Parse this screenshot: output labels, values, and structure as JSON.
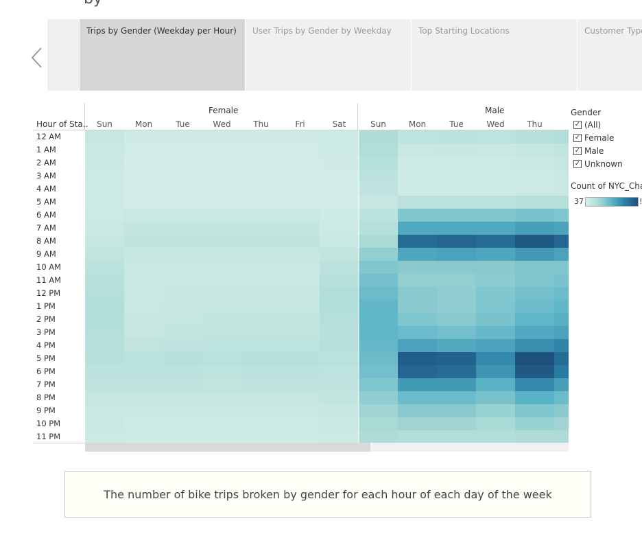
{
  "top_clipped_text": "by",
  "story": {
    "points": [
      {
        "label": "Trips by Gender (Weekday per Hour)",
        "active": true
      },
      {
        "label": "User Trips by Gender by Weekday",
        "active": false
      },
      {
        "label": "Top Starting Locations",
        "active": false
      },
      {
        "label": "Customer Type",
        "active": false
      }
    ],
    "prev_icon": "chevron-left-icon"
  },
  "viz": {
    "row_header": "Hour of Sta..",
    "hours": [
      "12 AM",
      "1 AM",
      "2 AM",
      "3 AM",
      "4 AM",
      "5 AM",
      "6 AM",
      "7 AM",
      "8 AM",
      "9 AM",
      "10 AM",
      "11 AM",
      "12 PM",
      "1 PM",
      "2 PM",
      "3 PM",
      "4 PM",
      "5 PM",
      "6 PM",
      "7 PM",
      "8 PM",
      "9 PM",
      "10 PM",
      "11 PM"
    ],
    "panes": [
      {
        "gender": "Female",
        "days": [
          "Sun",
          "Mon",
          "Tue",
          "Wed",
          "Thu",
          "Fri",
          "Sat"
        ]
      },
      {
        "gender": "Male",
        "days": [
          "Sun",
          "Mon",
          "Tue",
          "Wed",
          "Thu"
        ]
      }
    ]
  },
  "legends": {
    "filter_title": "Gender",
    "filter_items": [
      {
        "label": "(All)",
        "checked": true
      },
      {
        "label": "Female",
        "checked": true
      },
      {
        "label": "Male",
        "checked": true
      },
      {
        "label": "Unknown",
        "checked": true
      }
    ],
    "color_title": "Count of NYC_Chall",
    "color_min": "37",
    "color_max_visible": "!",
    "ramp_colors": [
      "#d7eee9",
      "#a9dad5",
      "#5bb3c7",
      "#2a7fa5",
      "#1f4f7d"
    ]
  },
  "chart_data": {
    "type": "heatmap",
    "title": "",
    "xlabel": "",
    "ylabel": "Hour of Sta..",
    "columns": [
      "Female Sun",
      "Female Mon",
      "Female Tue",
      "Female Wed",
      "Female Thu",
      "Female Fri",
      "Female Sat",
      "Male Sun",
      "Male Mon",
      "Male Tue",
      "Male Wed",
      "Male Thu",
      "Male Fri"
    ],
    "rows": [
      "12 AM",
      "1 AM",
      "2 AM",
      "3 AM",
      "4 AM",
      "5 AM",
      "6 AM",
      "7 AM",
      "8 AM",
      "9 AM",
      "10 AM",
      "11 AM",
      "12 PM",
      "1 PM",
      "2 PM",
      "3 PM",
      "4 PM",
      "5 PM",
      "6 PM",
      "7 PM",
      "8 PM",
      "9 PM",
      "10 PM",
      "11 PM"
    ],
    "values": [
      [
        0.1,
        0.04,
        0.04,
        0.04,
        0.04,
        0.04,
        0.06,
        0.22,
        0.14,
        0.15,
        0.14,
        0.18,
        0.2
      ],
      [
        0.08,
        0.03,
        0.03,
        0.03,
        0.03,
        0.03,
        0.05,
        0.2,
        0.08,
        0.09,
        0.08,
        0.1,
        0.12
      ],
      [
        0.07,
        0.02,
        0.02,
        0.02,
        0.02,
        0.02,
        0.04,
        0.18,
        0.06,
        0.06,
        0.06,
        0.08,
        0.1
      ],
      [
        0.06,
        0.02,
        0.02,
        0.02,
        0.02,
        0.02,
        0.03,
        0.15,
        0.05,
        0.05,
        0.05,
        0.06,
        0.08
      ],
      [
        0.05,
        0.02,
        0.02,
        0.02,
        0.02,
        0.02,
        0.03,
        0.13,
        0.05,
        0.05,
        0.05,
        0.06,
        0.07
      ],
      [
        0.05,
        0.03,
        0.03,
        0.03,
        0.03,
        0.03,
        0.03,
        0.1,
        0.16,
        0.16,
        0.16,
        0.17,
        0.17
      ],
      [
        0.06,
        0.07,
        0.07,
        0.07,
        0.07,
        0.07,
        0.05,
        0.15,
        0.38,
        0.38,
        0.38,
        0.4,
        0.38
      ],
      [
        0.07,
        0.11,
        0.11,
        0.11,
        0.11,
        0.11,
        0.06,
        0.18,
        0.55,
        0.55,
        0.55,
        0.6,
        0.58
      ],
      [
        0.09,
        0.13,
        0.13,
        0.13,
        0.13,
        0.13,
        0.08,
        0.25,
        0.85,
        0.88,
        0.85,
        0.95,
        0.88
      ],
      [
        0.12,
        0.09,
        0.09,
        0.09,
        0.09,
        0.09,
        0.11,
        0.32,
        0.56,
        0.58,
        0.56,
        0.62,
        0.58
      ],
      [
        0.15,
        0.07,
        0.07,
        0.07,
        0.07,
        0.07,
        0.15,
        0.38,
        0.35,
        0.35,
        0.35,
        0.38,
        0.38
      ],
      [
        0.17,
        0.07,
        0.07,
        0.08,
        0.08,
        0.08,
        0.18,
        0.42,
        0.32,
        0.32,
        0.34,
        0.38,
        0.4
      ],
      [
        0.19,
        0.08,
        0.09,
        0.09,
        0.1,
        0.09,
        0.2,
        0.45,
        0.35,
        0.33,
        0.38,
        0.42,
        0.45
      ],
      [
        0.2,
        0.08,
        0.1,
        0.1,
        0.1,
        0.1,
        0.2,
        0.48,
        0.35,
        0.33,
        0.38,
        0.45,
        0.48
      ],
      [
        0.2,
        0.09,
        0.1,
        0.11,
        0.11,
        0.11,
        0.19,
        0.48,
        0.38,
        0.36,
        0.4,
        0.48,
        0.52
      ],
      [
        0.19,
        0.1,
        0.11,
        0.12,
        0.12,
        0.12,
        0.18,
        0.48,
        0.45,
        0.42,
        0.46,
        0.55,
        0.58
      ],
      [
        0.18,
        0.12,
        0.13,
        0.14,
        0.14,
        0.14,
        0.17,
        0.47,
        0.58,
        0.55,
        0.58,
        0.68,
        0.72
      ],
      [
        0.17,
        0.16,
        0.17,
        0.16,
        0.17,
        0.17,
        0.16,
        0.45,
        0.92,
        0.9,
        0.7,
        1.0,
        0.85
      ],
      [
        0.15,
        0.16,
        0.16,
        0.14,
        0.16,
        0.16,
        0.14,
        0.42,
        0.88,
        0.85,
        0.65,
        0.95,
        0.78
      ],
      [
        0.13,
        0.13,
        0.13,
        0.12,
        0.13,
        0.13,
        0.13,
        0.38,
        0.62,
        0.62,
        0.5,
        0.7,
        0.6
      ],
      [
        0.1,
        0.1,
        0.1,
        0.1,
        0.1,
        0.1,
        0.11,
        0.33,
        0.45,
        0.45,
        0.4,
        0.5,
        0.45
      ],
      [
        0.08,
        0.08,
        0.08,
        0.08,
        0.08,
        0.08,
        0.09,
        0.28,
        0.35,
        0.35,
        0.3,
        0.38,
        0.35
      ],
      [
        0.07,
        0.06,
        0.06,
        0.06,
        0.06,
        0.06,
        0.08,
        0.25,
        0.28,
        0.28,
        0.25,
        0.3,
        0.28
      ],
      [
        0.06,
        0.05,
        0.05,
        0.05,
        0.05,
        0.05,
        0.06,
        0.22,
        0.2,
        0.2,
        0.2,
        0.22,
        0.22
      ]
    ]
  },
  "caption": "The number of bike trips broken by gender for each hour of each day of the week"
}
